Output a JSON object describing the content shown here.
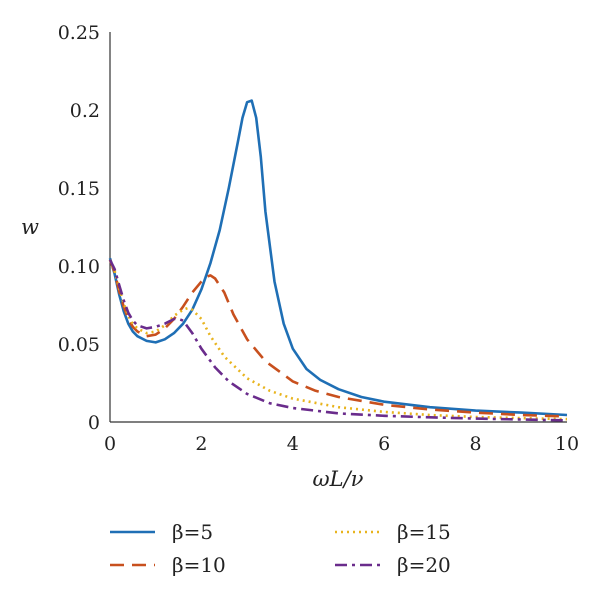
{
  "chart_data": {
    "type": "line",
    "xlabel": "ωL/ν",
    "ylabel": "w",
    "xlim": [
      0,
      10
    ],
    "ylim": [
      0,
      0.25
    ],
    "xticks": [
      0,
      2,
      4,
      6,
      8,
      10
    ],
    "yticks": [
      "0",
      "0.05",
      "0.10",
      "0.15",
      "0.2",
      "0.25"
    ],
    "ytick_values": [
      0,
      0.05,
      0.1,
      0.15,
      0.2,
      0.25
    ],
    "grid": false,
    "legend_position": "bottom",
    "series": [
      {
        "name": "β=5",
        "color": "#1f6fb5",
        "dash": "solid",
        "x": [
          0,
          0.1,
          0.2,
          0.3,
          0.4,
          0.5,
          0.6,
          0.8,
          1.0,
          1.2,
          1.4,
          1.6,
          1.8,
          2.0,
          2.2,
          2.4,
          2.6,
          2.8,
          2.9,
          3.0,
          3.1,
          3.2,
          3.3,
          3.4,
          3.6,
          3.8,
          4.0,
          4.3,
          4.6,
          5.0,
          5.5,
          6.0,
          7.0,
          8.0,
          9.0,
          10.0
        ],
        "y": [
          0.105,
          0.095,
          0.082,
          0.071,
          0.063,
          0.058,
          0.055,
          0.052,
          0.051,
          0.053,
          0.057,
          0.063,
          0.072,
          0.085,
          0.102,
          0.123,
          0.15,
          0.18,
          0.195,
          0.205,
          0.206,
          0.195,
          0.17,
          0.135,
          0.09,
          0.063,
          0.047,
          0.034,
          0.027,
          0.021,
          0.016,
          0.013,
          0.0095,
          0.0073,
          0.006,
          0.0045
        ]
      },
      {
        "name": "β=10",
        "color": "#c8501e",
        "dash": "dashed",
        "x": [
          0,
          0.1,
          0.2,
          0.3,
          0.4,
          0.5,
          0.6,
          0.8,
          1.0,
          1.2,
          1.4,
          1.6,
          1.8,
          2.0,
          2.1,
          2.2,
          2.3,
          2.5,
          2.7,
          3.0,
          3.4,
          4.0,
          4.5,
          5.0,
          6.0,
          7.0,
          8.0,
          9.0,
          10.0
        ],
        "y": [
          0.104,
          0.096,
          0.084,
          0.074,
          0.066,
          0.061,
          0.058,
          0.055,
          0.056,
          0.06,
          0.066,
          0.074,
          0.083,
          0.09,
          0.093,
          0.094,
          0.092,
          0.083,
          0.069,
          0.053,
          0.039,
          0.026,
          0.02,
          0.016,
          0.011,
          0.008,
          0.006,
          0.0045,
          0.0035
        ]
      },
      {
        "name": "β=15",
        "color": "#e8b41e",
        "dash": "dotted",
        "x": [
          0,
          0.1,
          0.2,
          0.3,
          0.4,
          0.5,
          0.6,
          0.8,
          1.0,
          1.2,
          1.4,
          1.6,
          1.7,
          1.8,
          2.0,
          2.2,
          2.5,
          3.0,
          3.5,
          4.0,
          5.0,
          6.0,
          7.0,
          8.0,
          9.0,
          10.0
        ],
        "y": [
          0.104,
          0.097,
          0.086,
          0.076,
          0.068,
          0.063,
          0.06,
          0.057,
          0.058,
          0.062,
          0.068,
          0.072,
          0.073,
          0.072,
          0.066,
          0.055,
          0.042,
          0.028,
          0.02,
          0.015,
          0.0095,
          0.0065,
          0.0045,
          0.0032,
          0.0025,
          0.0018
        ]
      },
      {
        "name": "β=20",
        "color": "#6a2c8c",
        "dash": "dashdot",
        "x": [
          0,
          0.1,
          0.2,
          0.3,
          0.4,
          0.5,
          0.6,
          0.8,
          1.0,
          1.2,
          1.4,
          1.5,
          1.6,
          1.8,
          2.0,
          2.3,
          2.6,
          3.0,
          3.5,
          4.0,
          5.0,
          6.0,
          7.0,
          8.0,
          9.0,
          10.0
        ],
        "y": [
          0.104,
          0.098,
          0.088,
          0.078,
          0.07,
          0.065,
          0.062,
          0.06,
          0.061,
          0.063,
          0.066,
          0.066,
          0.065,
          0.057,
          0.047,
          0.035,
          0.026,
          0.018,
          0.012,
          0.009,
          0.0055,
          0.004,
          0.003,
          0.0022,
          0.0016,
          0.001
        ]
      }
    ]
  }
}
